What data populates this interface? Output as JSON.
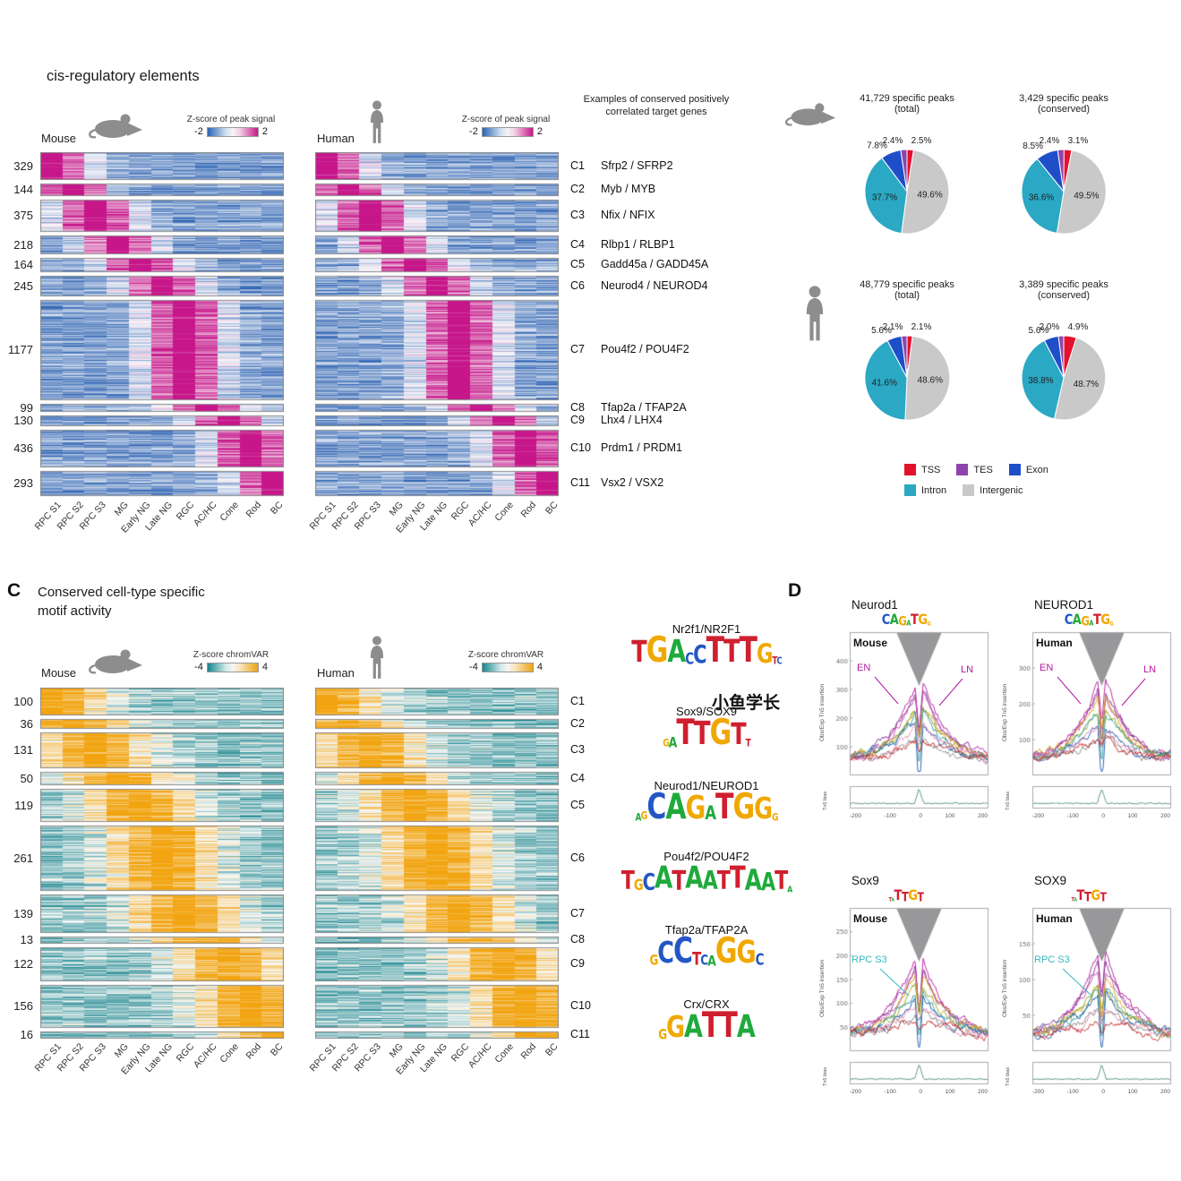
{
  "figure": {
    "panel_b": {
      "title": "cis-regulatory elements",
      "genes_header": "Examples of conserved positively correlated target genes",
      "mouse_label": "Mouse",
      "human_label": "Human"
    },
    "panel_c": {
      "label": "C",
      "title_line1": "Conserved cell-type specific",
      "title_line2": "motif activity",
      "mouse_label": "Mouse",
      "human_label": "Human",
      "watermark": "小鱼学长"
    },
    "panel_d": {
      "label": "D"
    }
  },
  "chart_data": [
    {
      "id": "cis_heatmap",
      "type": "heatmap",
      "title": "cis-regulatory elements",
      "colorbar": {
        "label": "Z-score of peak signal",
        "min": -2,
        "max": 2,
        "colormap": "blue-white-magenta"
      },
      "columns": [
        "RPC S1",
        "RPC S2",
        "RPC S3",
        "MG",
        "Early NG",
        "Late NG",
        "RGC",
        "AC/HC",
        "Cone",
        "Rod",
        "BC"
      ],
      "species": [
        "Mouse",
        "Human"
      ],
      "gauss_width": 1.15,
      "amp": 1.75,
      "base": 0.55,
      "noise": 0.55,
      "clusters": [
        {
          "id": "C1",
          "rows": 329,
          "gene": "Sfrp2 / SFRP2",
          "peak_column": 0
        },
        {
          "id": "C2",
          "rows": 144,
          "gene": "Myb / MYB",
          "peak_column": 1
        },
        {
          "id": "C3",
          "rows": 375,
          "gene": "Nfix / NFIX",
          "peak_column": 2
        },
        {
          "id": "C4",
          "rows": 218,
          "gene": "Rlbp1 / RLBP1",
          "peak_column": 3
        },
        {
          "id": "C5",
          "rows": 164,
          "gene": "Gadd45a / GADD45A",
          "peak_column": 4
        },
        {
          "id": "C6",
          "rows": 245,
          "gene": "Neurod4 / NEUROD4",
          "peak_column": 5
        },
        {
          "id": "C7",
          "rows": 1177,
          "gene": "Pou4f2 / POU4F2",
          "peak_column": 6
        },
        {
          "id": "C8",
          "rows": 99,
          "gene": "Tfap2a / TFAP2A",
          "peak_column": 7
        },
        {
          "id": "C9",
          "rows": 130,
          "gene": "Lhx4 / LHX4",
          "peak_column": 8
        },
        {
          "id": "C10",
          "rows": 436,
          "gene": "Prdm1 / PRDM1",
          "peak_column": 9
        },
        {
          "id": "C11",
          "rows": 293,
          "gene": "Vsx2 / VSX2",
          "peak_column": 10
        }
      ],
      "genes_header": "Examples of conserved positively correlated target genes"
    },
    {
      "id": "peak_pies",
      "type": "pie",
      "order": [
        "TSS",
        "Intergenic",
        "Intron",
        "Exon",
        "TES"
      ],
      "legend": [
        [
          "TSS",
          "#e4112d"
        ],
        [
          "TES",
          "#8e44ad"
        ],
        [
          "Exon",
          "#1f4fc8"
        ],
        [
          "Intron",
          "#2aa8c4"
        ],
        [
          "Intergenic",
          "#c9c9c9"
        ]
      ],
      "pies": [
        {
          "species": "Mouse",
          "title": "41,729 specific peaks",
          "subtitle": "(total)",
          "values": [
            2.5,
            49.6,
            37.7,
            7.8,
            2.4
          ]
        },
        {
          "species": "Mouse",
          "title": "3,429 specific peaks",
          "subtitle": "(conserved)",
          "values": [
            3.1,
            49.5,
            36.6,
            8.5,
            2.4
          ]
        },
        {
          "species": "Human",
          "title": "48,779 specific peaks",
          "subtitle": "(total)",
          "values": [
            2.1,
            48.6,
            41.6,
            5.6,
            2.1
          ]
        },
        {
          "species": "Human",
          "title": "3,389 specific peaks",
          "subtitle": "(conserved)",
          "values": [
            4.9,
            48.7,
            38.8,
            5.6,
            2.0
          ]
        }
      ]
    },
    {
      "id": "motif_heatmap",
      "type": "heatmap",
      "title": "Conserved cell-type specific motif activity",
      "colorbar": {
        "label": "Z-score chromVAR",
        "min": -4,
        "max": 4,
        "colormap": "teal-white-gold"
      },
      "columns": [
        "RPC S1",
        "RPC S2",
        "RPC S3",
        "MG",
        "Early NG",
        "Late NG",
        "RGC",
        "AC/HC",
        "Cone",
        "Rod",
        "BC"
      ],
      "species": [
        "Mouse",
        "Human"
      ],
      "gauss_width": 1.7,
      "amp": 1.5,
      "base": 0.45,
      "noise": 0.7,
      "clusters": [
        {
          "id": "C1",
          "rows": 100,
          "peak_column": 0
        },
        {
          "id": "C2",
          "rows": 36,
          "peak_column": 1
        },
        {
          "id": "C3",
          "rows": 131,
          "peak_column": 2
        },
        {
          "id": "C4",
          "rows": 50,
          "peak_column": 3
        },
        {
          "id": "C5",
          "rows": 119,
          "peak_column": 4
        },
        {
          "id": "C6",
          "rows": 261,
          "peak_column": 5
        },
        {
          "id": "C7",
          "rows": 139,
          "peak_column": 6
        },
        {
          "id": "C8",
          "rows": 13,
          "peak_column": 7
        },
        {
          "id": "C9",
          "rows": 122,
          "peak_column": 8
        },
        {
          "id": "C10",
          "rows": 156,
          "peak_column": 9
        },
        {
          "id": "C11",
          "rows": 16,
          "peak_column": 10
        }
      ],
      "motifs": [
        {
          "name": "Nr2f1/NR2F1",
          "logo": [
            [
              "T",
              0.85
            ],
            [
              "G",
              1
            ],
            [
              "A",
              0.9
            ],
            [
              "c",
              0.45
            ],
            [
              "C",
              0.7
            ],
            [
              "T",
              1
            ],
            [
              "T",
              0.9
            ],
            [
              "T",
              1
            ],
            [
              "G",
              0.75
            ],
            [
              "t",
              0.3
            ],
            [
              "c",
              0.28
            ]
          ]
        },
        {
          "name": "Sox9/SOX9",
          "logo": [
            [
              "g",
              0.3
            ],
            [
              "a",
              0.42
            ],
            [
              "T",
              1
            ],
            [
              "T",
              0.92
            ],
            [
              "G",
              1
            ],
            [
              "T",
              0.85
            ],
            [
              "t",
              0.3
            ]
          ]
        },
        {
          "name": "Neurod1/NEUROD1",
          "logo": [
            [
              "a",
              0.3
            ],
            [
              "g",
              0.32
            ],
            [
              "C",
              1
            ],
            [
              "A",
              1
            ],
            [
              "G",
              0.92
            ],
            [
              "A",
              0.55
            ],
            [
              "T",
              1
            ],
            [
              "G",
              1
            ],
            [
              "G",
              0.85
            ],
            [
              "g",
              0.3
            ]
          ]
        },
        {
          "name": "Pou4f2/POU4F2",
          "logo": [
            [
              "T",
              0.85
            ],
            [
              "g",
              0.5
            ],
            [
              "C",
              0.75
            ],
            [
              "A",
              1
            ],
            [
              "T",
              0.9
            ],
            [
              "A",
              1
            ],
            [
              "A",
              0.85
            ],
            [
              "T",
              0.85
            ],
            [
              "T",
              1
            ],
            [
              "A",
              0.95
            ],
            [
              "A",
              0.8
            ],
            [
              "T",
              0.85
            ],
            [
              "a",
              0.3
            ]
          ]
        },
        {
          "name": "Tfap2a/TFAP2A",
          "logo": [
            [
              "g",
              0.4
            ],
            [
              "C",
              0.85
            ],
            [
              "C",
              1
            ],
            [
              "t",
              0.5
            ],
            [
              "c",
              0.4
            ],
            [
              "a",
              0.42
            ],
            [
              "G",
              1
            ],
            [
              "G",
              0.9
            ],
            [
              "c",
              0.45
            ]
          ]
        },
        {
          "name": "Crx/CRX",
          "logo": [
            [
              "g",
              0.4
            ],
            [
              "G",
              0.85
            ],
            [
              "A",
              0.9
            ],
            [
              "T",
              1
            ],
            [
              "T",
              1
            ],
            [
              "A",
              0.9
            ]
          ]
        }
      ]
    },
    {
      "id": "footprints",
      "type": "line",
      "ylabel": "Obs/Exp Tn5 insertion",
      "bias_label": "Tn5 bias",
      "xticks": [
        "-200",
        "-100",
        "0",
        "100",
        "200"
      ],
      "x_range": [
        -250,
        250
      ],
      "series_colors": [
        "#b5179e",
        "#7b2d8e",
        "#c44fae",
        "#d9a414",
        "#9aa414",
        "#2e9e9e",
        "#1a56b0",
        "#e58ab8",
        "#888888",
        "#c62828"
      ],
      "plots": [
        {
          "title": "Neurod1",
          "species": "Mouse",
          "annotations": [
            {
              "text": "EN",
              "color": "#b5179e"
            },
            {
              "text": "LN",
              "color": "#b5179e"
            }
          ],
          "logo": [
            [
              "C",
              1
            ],
            [
              "A",
              1
            ],
            [
              "G",
              0.9
            ],
            [
              "A",
              0.5
            ],
            [
              "T",
              1
            ],
            [
              "G",
              1
            ],
            [
              "g",
              0.4
            ]
          ],
          "yticks": [
            "100",
            "200",
            "300",
            "400"
          ]
        },
        {
          "title": "NEUROD1",
          "species": "Human",
          "annotations": [
            {
              "text": "EN",
              "color": "#b5179e"
            },
            {
              "text": "LN",
              "color": "#b5179e"
            }
          ],
          "logo": [
            [
              "C",
              1
            ],
            [
              "A",
              1
            ],
            [
              "G",
              0.9
            ],
            [
              "A",
              0.5
            ],
            [
              "T",
              1
            ],
            [
              "G",
              1
            ],
            [
              "g",
              0.4
            ]
          ],
          "yticks": [
            "100",
            "200",
            "300"
          ]
        },
        {
          "title": "Sox9",
          "species": "Mouse",
          "annotations": [
            {
              "text": "RPC S3",
              "color": "#35b8c3"
            }
          ],
          "logo": [
            [
              "t",
              0.4
            ],
            [
              "a",
              0.35
            ],
            [
              "T",
              1
            ],
            [
              "T",
              0.9
            ],
            [
              "G",
              1
            ],
            [
              "T",
              0.85
            ]
          ],
          "yticks": [
            "50",
            "100",
            "150",
            "200",
            "250"
          ]
        },
        {
          "title": "SOX9",
          "species": "Human",
          "annotations": [
            {
              "text": "RPC S3",
              "color": "#35b8c3"
            }
          ],
          "logo": [
            [
              "t",
              0.4
            ],
            [
              "a",
              0.35
            ],
            [
              "T",
              1
            ],
            [
              "T",
              0.9
            ],
            [
              "G",
              1
            ],
            [
              "T",
              0.85
            ]
          ],
          "yticks": [
            "50",
            "100",
            "150"
          ]
        }
      ]
    }
  ]
}
